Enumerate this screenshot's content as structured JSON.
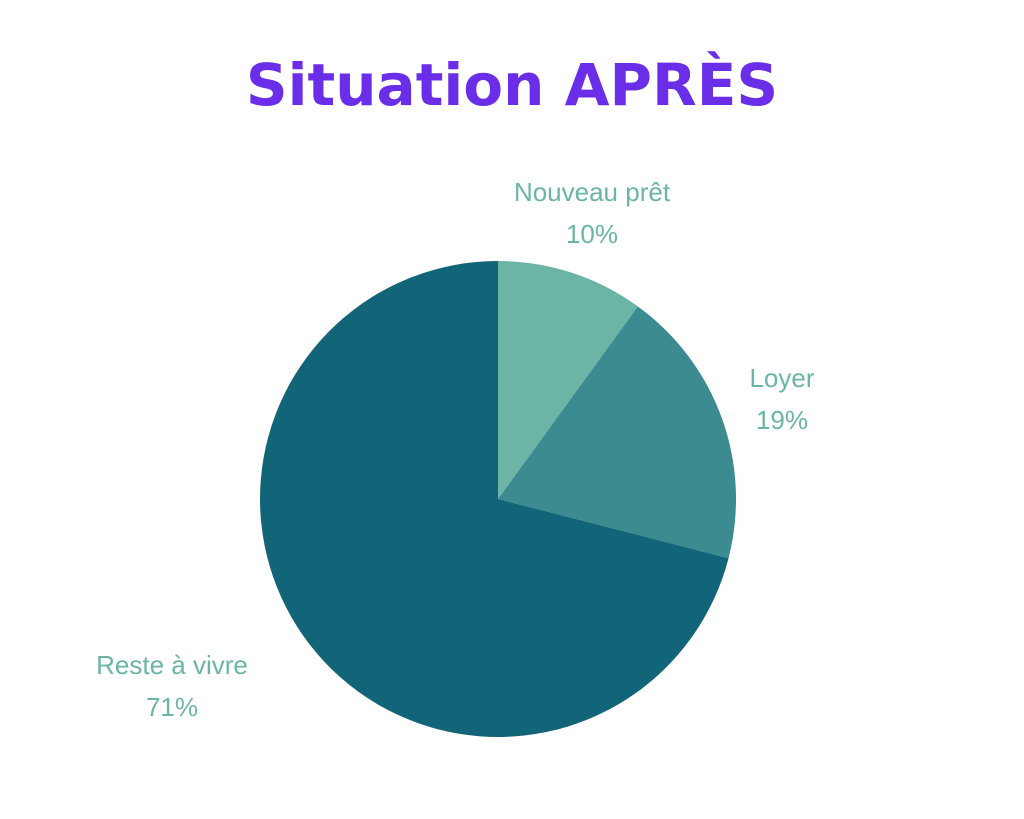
{
  "title": "Situation APRÈS",
  "title_color": "#6b2ee8",
  "label_color": "#6bb5a6",
  "chart_data": {
    "type": "pie",
    "title": "Situation APRÈS",
    "start_angle_deg": 0,
    "direction": "clockwise",
    "slices": [
      {
        "label": "Nouveau prêt",
        "value": 10,
        "percent_label": "10%",
        "color": "#6cb4a6"
      },
      {
        "label": "Loyer",
        "value": 19,
        "percent_label": "19%",
        "color": "#3b8b91"
      },
      {
        "label": "Reste à vivre",
        "value": 71,
        "percent_label": "71%",
        "color": "#126478"
      }
    ]
  }
}
